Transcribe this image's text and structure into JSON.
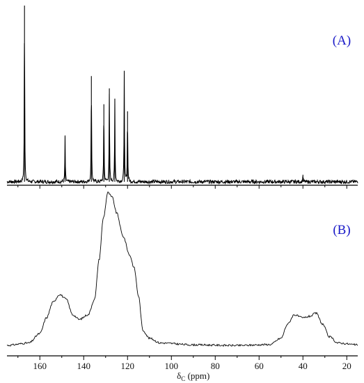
{
  "chart_data": [
    {
      "type": "line",
      "panel_label": "(A)",
      "xlim": [
        175,
        15
      ],
      "x_reversed": true,
      "noise_baseline": 0.02,
      "peaks": [
        {
          "x": 167.0,
          "y": 1.0
        },
        {
          "x": 148.5,
          "y": 0.26
        },
        {
          "x": 136.5,
          "y": 0.6
        },
        {
          "x": 130.8,
          "y": 0.44
        },
        {
          "x": 128.3,
          "y": 0.53
        },
        {
          "x": 125.8,
          "y": 0.47
        },
        {
          "x": 121.5,
          "y": 0.63
        },
        {
          "x": 120.0,
          "y": 0.4
        },
        {
          "x": 40.0,
          "y": 0.04
        }
      ]
    },
    {
      "type": "line",
      "panel_label": "(B)",
      "xlim": [
        175,
        15
      ],
      "x_reversed": true,
      "xlabel_main": "δ",
      "xlabel_sub": "C",
      "xlabel_unit": " (ppm)",
      "xticks": [
        160,
        140,
        120,
        100,
        80,
        60,
        40,
        20
      ],
      "points": [
        [
          175,
          0.005
        ],
        [
          165,
          0.02
        ],
        [
          160,
          0.08
        ],
        [
          157,
          0.18
        ],
        [
          154,
          0.28
        ],
        [
          151,
          0.33
        ],
        [
          148,
          0.3
        ],
        [
          145,
          0.2
        ],
        [
          142,
          0.17
        ],
        [
          138,
          0.2
        ],
        [
          135,
          0.3
        ],
        [
          133,
          0.55
        ],
        [
          131,
          0.82
        ],
        [
          129,
          0.98
        ],
        [
          127,
          0.95
        ],
        [
          125,
          0.85
        ],
        [
          122,
          0.7
        ],
        [
          119,
          0.58
        ],
        [
          117,
          0.5
        ],
        [
          115,
          0.32
        ],
        [
          113,
          0.1
        ],
        [
          110,
          0.05
        ],
        [
          105,
          0.02
        ],
        [
          90,
          0.008
        ],
        [
          70,
          0.004
        ],
        [
          55,
          0.01
        ],
        [
          50,
          0.05
        ],
        [
          47,
          0.14
        ],
        [
          44,
          0.2
        ],
        [
          40,
          0.18
        ],
        [
          37,
          0.19
        ],
        [
          34,
          0.21
        ],
        [
          31,
          0.14
        ],
        [
          28,
          0.06
        ],
        [
          24,
          0.02
        ],
        [
          15,
          0.008
        ]
      ]
    }
  ]
}
